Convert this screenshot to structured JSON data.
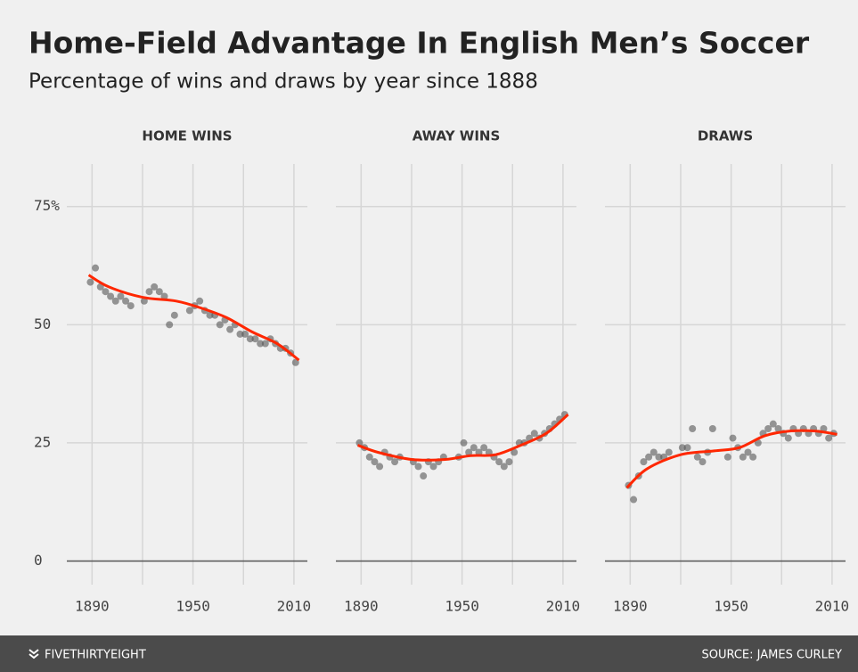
{
  "header": {
    "title": "Home-Field Advantage In English Men’s Soccer",
    "subtitle": "Percentage of wins and draws by year since 1888"
  },
  "footer": {
    "brand": "FIVETHIRTYEIGHT",
    "source": "SOURCE: JAMES CURLEY"
  },
  "chart_data": [
    {
      "type": "scatter",
      "title": "HOME WINS",
      "xlim": [
        1875,
        2018
      ],
      "ylim": [
        -5,
        84
      ],
      "xticks": [
        1890,
        1950,
        2010
      ],
      "minor_xticks": [
        1920,
        1980
      ],
      "yticks": [
        0,
        25,
        50,
        {
          "value": 75,
          "label": "75%"
        }
      ],
      "points": {
        "color": "#555555",
        "x": [
          1889,
          1892,
          1895,
          1898,
          1901,
          1904,
          1907,
          1910,
          1913,
          1921,
          1924,
          1927,
          1930,
          1933,
          1936,
          1939,
          1948,
          1951,
          1954,
          1957,
          1960,
          1963,
          1966,
          1969,
          1972,
          1975,
          1978,
          1981,
          1984,
          1987,
          1990,
          1993,
          1996,
          1999,
          2002,
          2005,
          2008,
          2011
        ],
        "values": [
          59,
          62,
          58,
          57,
          56,
          55,
          56,
          55,
          54,
          55,
          57,
          58,
          57,
          56,
          50,
          52,
          53,
          54,
          55,
          53,
          52,
          52,
          50,
          51,
          49,
          50,
          48,
          48,
          47,
          47,
          46,
          46,
          47,
          46,
          45,
          45,
          44,
          42
        ]
      },
      "trend": {
        "color": "#ff2700",
        "x": [
          1888,
          1900,
          1920,
          1940,
          1955,
          1970,
          1985,
          2000,
          2013
        ],
        "values": [
          60.5,
          58,
          55.8,
          55,
          53.5,
          51.5,
          48.5,
          46,
          42.5
        ]
      }
    },
    {
      "type": "scatter",
      "title": "AWAY WINS",
      "xlim": [
        1875,
        2018
      ],
      "ylim": [
        -5,
        84
      ],
      "xticks": [
        1890,
        1950,
        2010
      ],
      "minor_xticks": [
        1920,
        1980
      ],
      "yticks": [
        0,
        25,
        50,
        75
      ],
      "points": {
        "color": "#555555",
        "x": [
          1889,
          1892,
          1895,
          1898,
          1901,
          1904,
          1907,
          1910,
          1913,
          1921,
          1924,
          1927,
          1930,
          1933,
          1936,
          1939,
          1948,
          1951,
          1954,
          1957,
          1960,
          1963,
          1966,
          1969,
          1972,
          1975,
          1978,
          1981,
          1984,
          1987,
          1990,
          1993,
          1996,
          1999,
          2002,
          2005,
          2008,
          2011
        ],
        "values": [
          25,
          24,
          22,
          21,
          20,
          23,
          22,
          21,
          22,
          21,
          20,
          18,
          21,
          20,
          21,
          22,
          22,
          25,
          23,
          24,
          23,
          24,
          23,
          22,
          21,
          20,
          21,
          23,
          25,
          25,
          26,
          27,
          26,
          27,
          28,
          29,
          30,
          31
        ]
      },
      "trend": {
        "color": "#ff2700",
        "x": [
          1888,
          1900,
          1920,
          1940,
          1955,
          1970,
          1985,
          2000,
          2013
        ],
        "values": [
          24.5,
          23,
          21.5,
          21.5,
          22.3,
          22.5,
          24.5,
          27,
          31
        ]
      }
    },
    {
      "type": "scatter",
      "title": "DRAWS",
      "xlim": [
        1875,
        2018
      ],
      "ylim": [
        -5,
        84
      ],
      "xticks": [
        1890,
        1950,
        2010
      ],
      "minor_xticks": [
        1920,
        1980
      ],
      "yticks": [
        0,
        25,
        50,
        75
      ],
      "points": {
        "color": "#555555",
        "x": [
          1889,
          1892,
          1895,
          1898,
          1901,
          1904,
          1907,
          1910,
          1913,
          1921,
          1924,
          1927,
          1930,
          1933,
          1936,
          1939,
          1948,
          1951,
          1954,
          1957,
          1960,
          1963,
          1966,
          1969,
          1972,
          1975,
          1978,
          1981,
          1984,
          1987,
          1990,
          1993,
          1996,
          1999,
          2002,
          2005,
          2008,
          2011
        ],
        "values": [
          16,
          13,
          18,
          21,
          22,
          23,
          22,
          22,
          23,
          24,
          24,
          28,
          22,
          21,
          23,
          28,
          22,
          26,
          24,
          22,
          23,
          22,
          25,
          27,
          28,
          29,
          28,
          27,
          26,
          28,
          27,
          28,
          27,
          28,
          27,
          28,
          26,
          27
        ]
      },
      "trend": {
        "color": "#ff2700",
        "x": [
          1888,
          1900,
          1920,
          1940,
          1955,
          1970,
          1985,
          2000,
          2013
        ],
        "values": [
          15.5,
          19.5,
          22.5,
          23.3,
          24,
          26.5,
          27.5,
          27.5,
          26.8
        ]
      }
    }
  ]
}
